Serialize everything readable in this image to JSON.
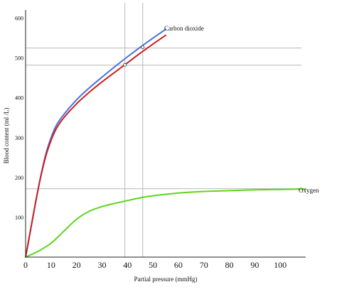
{
  "chart_data": {
    "type": "line",
    "xlabel": "Partial pressure (mmHg)",
    "ylabel": "Blood content (ml /L)",
    "xlim": [
      0,
      110
    ],
    "ylim": [
      0,
      610
    ],
    "x_ticks": [
      "0",
      "10",
      "20",
      "30",
      "40",
      "50",
      "60",
      "70",
      "80",
      "90",
      "100"
    ],
    "y_ticks": [
      "100",
      "200",
      "300",
      "400",
      "500",
      "600"
    ],
    "grid": false,
    "series": [
      {
        "name": "Carbon dioxide",
        "color": "#4a6fdc",
        "x": [
          0,
          2,
          4,
          6,
          8,
          10,
          12,
          15,
          20,
          25,
          30,
          35,
          40,
          45,
          50,
          55
        ],
        "y": [
          0,
          70,
          140,
          205,
          260,
          300,
          330,
          358,
          395,
          425,
          452,
          478,
          503,
          527,
          550,
          572
        ]
      },
      {
        "name": "",
        "color": "#cc1f1f",
        "x": [
          0,
          2,
          4,
          6,
          8,
          10,
          12,
          15,
          20,
          25,
          30,
          35,
          40,
          45,
          50,
          55
        ],
        "y": [
          0,
          70,
          140,
          203,
          255,
          293,
          322,
          350,
          385,
          414,
          440,
          464,
          488,
          512,
          535,
          557
        ]
      },
      {
        "name": "Oxygen",
        "color": "#5bd61c",
        "x": [
          0,
          5,
          10,
          15,
          20,
          25,
          30,
          35,
          40,
          45,
          50,
          60,
          70,
          80,
          90,
          100,
          110
        ],
        "y": [
          0,
          15,
          35,
          65,
          95,
          115,
          127,
          135,
          142,
          149,
          154,
          161,
          165,
          167,
          169,
          170,
          171
        ]
      }
    ],
    "reference_lines": {
      "vertical_x": [
        39,
        46
      ],
      "horizontal_y": [
        525,
        482,
        172
      ]
    },
    "markers": [
      {
        "x": 46,
        "y": 527,
        "color": "#4a6fdc"
      },
      {
        "x": 39,
        "y": 483,
        "color": "#cc1f1f"
      }
    ]
  }
}
